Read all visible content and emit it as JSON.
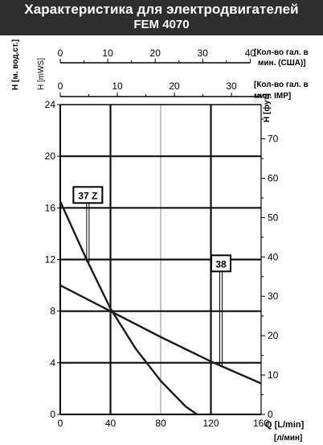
{
  "header": {
    "title_line1": "Характеристика для электродвигателей",
    "title_line2": "FEM 4070"
  },
  "axes": {
    "left_outer_label": "H [м. вод.ст.]",
    "left_inner_label": "H [mWS]",
    "right_label": "H [фут]",
    "bottom_label": "Q [L/min]",
    "bottom_sublabel": "[л/мин]",
    "top_usa_label_line1": "[Кол-во гал. в",
    "top_usa_label_line2": "мин. (США)]",
    "top_imp_label_line1": "[Кол-во гал. в",
    "top_imp_label_line2": "мин. IMP]",
    "x_ticks": [
      "0",
      "40",
      "80",
      "120",
      "160"
    ],
    "y_ticks": [
      "0",
      "4",
      "8",
      "12",
      "16",
      "20",
      "24"
    ],
    "ft_ticks": [
      "0",
      "10",
      "20",
      "30",
      "40",
      "50",
      "60",
      "70"
    ],
    "usa_ticks": [
      "0",
      "10",
      "20",
      "30",
      "40"
    ],
    "imp_ticks": [
      "0",
      "10",
      "20",
      "30"
    ]
  },
  "chart_data": {
    "type": "line",
    "xlabel": "Q [L/min]",
    "ylabel": "H [mWS]",
    "xlim": [
      0,
      160
    ],
    "ylim": [
      0,
      24
    ],
    "grid": true,
    "secondary_axes": {
      "right": {
        "unit": "фут",
        "range": [
          0,
          78.7
        ]
      },
      "top_usa": {
        "unit": "US gal/min",
        "range": [
          0,
          42.3
        ]
      },
      "top_imp": {
        "unit": "IMP gal/min",
        "range": [
          0,
          35.2
        ]
      }
    },
    "series": [
      {
        "name": "37 Z",
        "x": [
          0,
          20,
          40,
          60,
          80,
          100,
          109
        ],
        "y": [
          16.5,
          12.2,
          8.2,
          5.1,
          2.6,
          0.6,
          0
        ],
        "label_at": [
          22,
          17
        ]
      },
      {
        "name": "38",
        "x": [
          0,
          40,
          80,
          120,
          160
        ],
        "y": [
          10,
          8,
          6,
          4.1,
          2.4
        ],
        "label_at": [
          128,
          11.7
        ]
      }
    ]
  },
  "colors": {
    "header_bg": "#2e2e2e",
    "header_text": "#ffffff",
    "line": "#1a1a1a",
    "grid_major": "#111111",
    "grid_minor": "#8a8a8a"
  }
}
